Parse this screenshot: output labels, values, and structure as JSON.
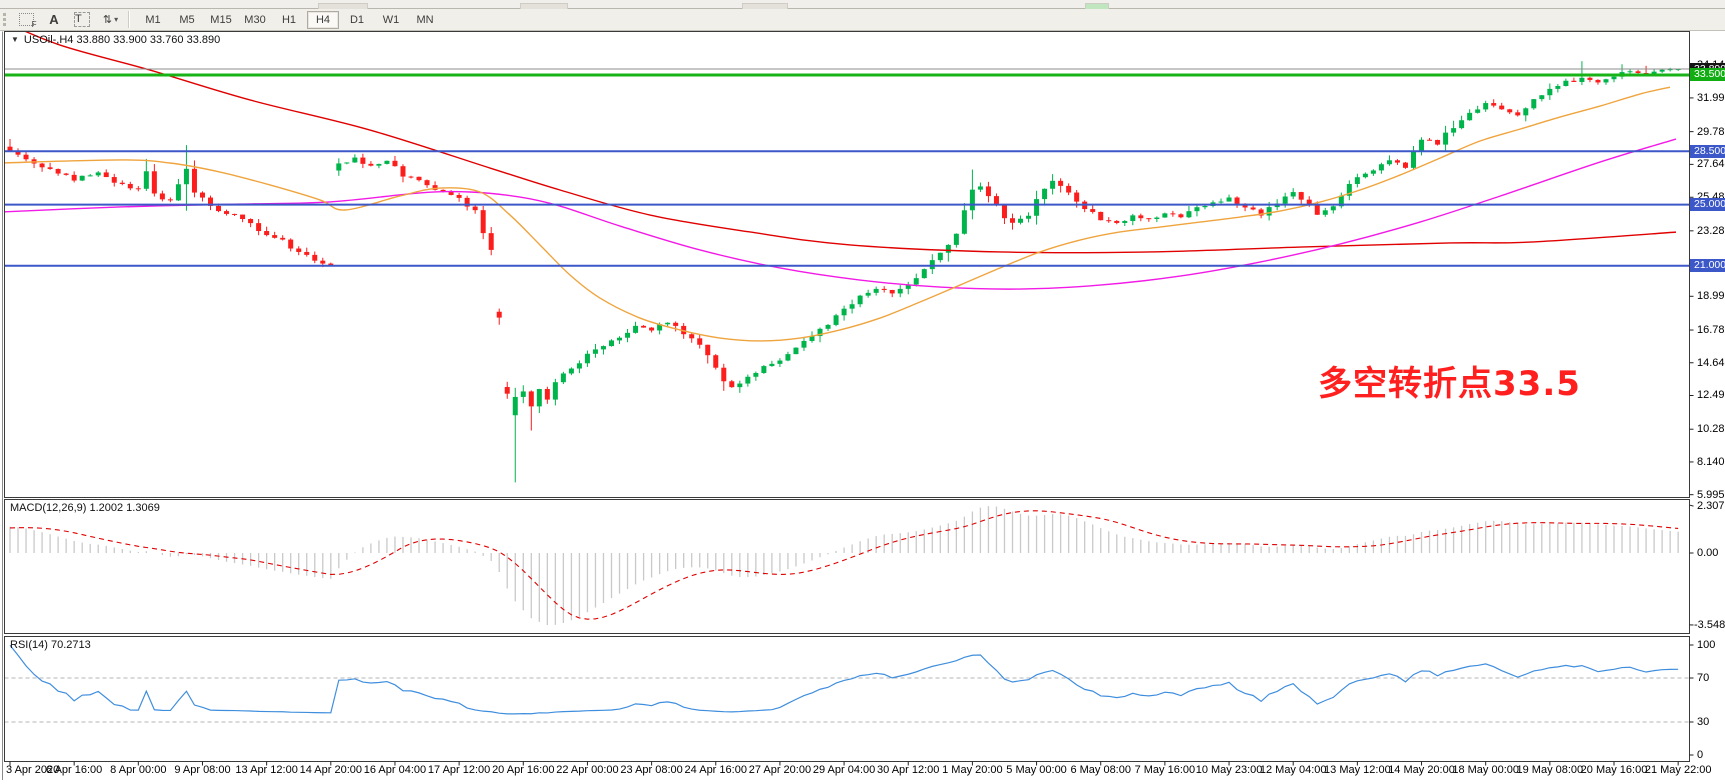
{
  "toolbar": {
    "icons": [
      {
        "name": "template-f-icon",
        "glyph": "F"
      },
      {
        "name": "text-label-icon",
        "glyph": "A"
      },
      {
        "name": "text-box-icon",
        "glyph": "T"
      },
      {
        "name": "arrow-styles-icon",
        "glyph": "⇅",
        "caret": "▾"
      }
    ],
    "timeframes": [
      "M1",
      "M5",
      "M15",
      "M30",
      "H1",
      "H4",
      "D1",
      "W1",
      "MN"
    ],
    "active_timeframe": "H4"
  },
  "main_chart": {
    "title": "USOil-,H4 33.880 33.900 33.760 33.890",
    "collapse_glyph": "▼",
    "annotation": {
      "text": "多空转折点33.5",
      "color": "#ff1f1f"
    }
  },
  "macd_panel": {
    "label": "MACD(12,26,9) 1.2002 1.3069",
    "ticks": [
      2.3072,
      0.0,
      -3.5484
    ]
  },
  "rsi_panel": {
    "label": "RSI(14) 70.2713",
    "ticks": [
      100,
      70,
      30,
      0
    ],
    "levels": [
      70,
      30
    ]
  },
  "chart_data": {
    "type": "candlestick",
    "symbol": "USOil",
    "timeframe": "H4",
    "current_bar_ohlc": {
      "open": 33.88,
      "high": 33.9,
      "low": 33.76,
      "close": 33.89
    },
    "bars": 209,
    "price_axis_ticks": [
      34.14,
      31.995,
      29.785,
      27.64,
      25.485,
      23.285,
      21.14,
      18.995,
      16.785,
      14.64,
      12.495,
      10.285,
      8.14,
      5.995
    ],
    "hlines": [
      {
        "price": 33.89,
        "label": "33.890",
        "line_color": "#8c8c8c",
        "label_bg": "#141414",
        "width": 1,
        "role": "bid-price-line"
      },
      {
        "price": 33.5,
        "label": "33.500",
        "line_color": "#17b317",
        "label_bg": "#12ad12",
        "width": 3,
        "role": "green-level-line"
      },
      {
        "price": 28.5,
        "label": "28.500",
        "line_color": "#3b57c8",
        "label_bg": "#3b57c8",
        "width": 2,
        "role": "blue-level-line"
      },
      {
        "price": 25.0,
        "label": "25.000",
        "line_color": "#3b57c8",
        "label_bg": "#3b57c8",
        "width": 2,
        "role": "blue-level-line"
      },
      {
        "price": 21.0,
        "label": "21.000",
        "line_color": "#3b57c8",
        "label_bg": "#3b57c8",
        "width": 2,
        "role": "blue-level-line"
      }
    ],
    "close_path_anchors": [
      [
        0,
        28.45
      ],
      [
        2,
        28.05
      ],
      [
        5,
        27.25
      ],
      [
        8,
        26.65
      ],
      [
        11,
        27.15
      ],
      [
        14,
        26.25
      ],
      [
        16,
        25.95
      ],
      [
        17,
        27.3
      ],
      [
        18,
        25.6
      ],
      [
        20,
        25.2
      ],
      [
        21,
        26.5
      ],
      [
        22,
        27.4
      ],
      [
        23,
        25.8
      ],
      [
        25,
        24.85
      ],
      [
        28,
        24.3
      ],
      [
        31,
        23.35
      ],
      [
        34,
        22.6
      ],
      [
        37,
        21.6
      ],
      [
        40,
        20.9
      ],
      [
        41,
        27.55
      ],
      [
        43,
        28.0
      ],
      [
        45,
        27.5
      ],
      [
        47,
        27.85
      ],
      [
        49,
        26.85
      ],
      [
        51,
        26.6
      ],
      [
        53,
        26.05
      ],
      [
        55,
        25.7
      ],
      [
        56,
        25.45
      ],
      [
        58,
        24.6
      ],
      [
        60,
        22.0
      ],
      [
        61,
        17.5
      ],
      [
        62,
        12.8
      ],
      [
        63,
        11.3
      ],
      [
        64,
        12.6
      ],
      [
        65,
        11.6
      ],
      [
        66,
        12.8
      ],
      [
        67,
        12.1
      ],
      [
        68,
        13.4
      ],
      [
        70,
        14.2
      ],
      [
        72,
        15.1
      ],
      [
        74,
        15.8
      ],
      [
        76,
        16.4
      ],
      [
        78,
        17.0
      ],
      [
        80,
        16.8
      ],
      [
        82,
        17.3
      ],
      [
        84,
        16.6
      ],
      [
        86,
        15.9
      ],
      [
        88,
        14.2
      ],
      [
        89,
        13.3
      ],
      [
        90,
        13.0
      ],
      [
        92,
        13.8
      ],
      [
        94,
        14.3
      ],
      [
        96,
        14.7
      ],
      [
        98,
        15.6
      ],
      [
        100,
        16.3
      ],
      [
        102,
        17.2
      ],
      [
        104,
        18.2
      ],
      [
        106,
        18.9
      ],
      [
        108,
        19.6
      ],
      [
        110,
        19.1
      ],
      [
        112,
        19.9
      ],
      [
        114,
        20.8
      ],
      [
        116,
        21.7
      ],
      [
        118,
        23.2
      ],
      [
        120,
        25.8
      ],
      [
        121,
        26.3
      ],
      [
        123,
        24.9
      ],
      [
        125,
        23.7
      ],
      [
        127,
        24.2
      ],
      [
        129,
        26.2
      ],
      [
        130,
        26.7
      ],
      [
        132,
        25.8
      ],
      [
        134,
        24.8
      ],
      [
        136,
        24.0
      ],
      [
        138,
        23.7
      ],
      [
        140,
        24.3
      ],
      [
        142,
        24.0
      ],
      [
        144,
        24.5
      ],
      [
        146,
        24.2
      ],
      [
        148,
        24.9
      ],
      [
        150,
        25.1
      ],
      [
        152,
        25.4
      ],
      [
        154,
        24.8
      ],
      [
        156,
        24.4
      ],
      [
        158,
        25.1
      ],
      [
        160,
        25.7
      ],
      [
        162,
        24.9
      ],
      [
        163,
        24.25
      ],
      [
        165,
        24.9
      ],
      [
        166,
        25.6
      ],
      [
        168,
        26.8
      ],
      [
        170,
        27.3
      ],
      [
        172,
        27.9
      ],
      [
        174,
        27.5
      ],
      [
        176,
        29.3
      ],
      [
        178,
        29.0
      ],
      [
        180,
        30.2
      ],
      [
        182,
        31.0
      ],
      [
        184,
        31.6
      ],
      [
        186,
        31.2
      ],
      [
        188,
        30.9
      ],
      [
        190,
        31.9
      ],
      [
        192,
        32.6
      ],
      [
        194,
        33.0
      ],
      [
        196,
        33.3
      ],
      [
        198,
        33.05
      ],
      [
        200,
        33.5
      ],
      [
        202,
        33.7
      ],
      [
        204,
        33.6
      ],
      [
        206,
        33.85
      ],
      [
        208,
        33.89
      ]
    ],
    "bar_overrides": [
      {
        "bar": 0,
        "high": 29.3
      },
      {
        "bar": 17,
        "high": 28.0
      },
      {
        "bar": 22,
        "high": 28.9,
        "low": 24.6
      },
      {
        "bar": 63,
        "open": 11.2,
        "close": 12.4,
        "high": 13.0,
        "low": 6.8
      },
      {
        "bar": 65,
        "low": 10.2
      },
      {
        "bar": 89,
        "low": 12.8
      },
      {
        "bar": 120,
        "high": 27.3
      },
      {
        "bar": 130,
        "high": 27.0
      },
      {
        "bar": 196,
        "high": 34.4
      },
      {
        "bar": 201,
        "high": 34.2
      },
      {
        "bar": 204,
        "high": 34.1
      },
      {
        "bar": 208,
        "open": 33.88,
        "close": 33.89,
        "high": 33.9,
        "low": 33.76
      }
    ],
    "moving_averages": [
      {
        "name": "ma-slow-red",
        "color": "#e00000",
        "points": [
          [
            0,
            37.1
          ],
          [
            60,
            35.46
          ],
          [
            150,
            33.82
          ],
          [
            250,
            31.86
          ],
          [
            370,
            29.89
          ],
          [
            490,
            27.4
          ],
          [
            560,
            25.96
          ],
          [
            650,
            24.32
          ],
          [
            750,
            23.21
          ],
          [
            850,
            22.36
          ],
          [
            1000,
            21.9
          ],
          [
            1150,
            21.9
          ],
          [
            1300,
            22.22
          ],
          [
            1450,
            22.49
          ],
          [
            1530,
            22.55
          ],
          [
            1676,
            23.2
          ]
        ]
      },
      {
        "name": "ma-medium-magenta",
        "color": "#f21ae6",
        "points": [
          [
            0,
            24.52
          ],
          [
            120,
            24.85
          ],
          [
            240,
            25.04
          ],
          [
            330,
            25.18
          ],
          [
            420,
            25.77
          ],
          [
            470,
            25.83
          ],
          [
            520,
            25.5
          ],
          [
            560,
            24.91
          ],
          [
            620,
            23.6
          ],
          [
            700,
            22.03
          ],
          [
            780,
            20.85
          ],
          [
            860,
            20.06
          ],
          [
            940,
            19.6
          ],
          [
            1020,
            19.47
          ],
          [
            1100,
            19.73
          ],
          [
            1180,
            20.32
          ],
          [
            1260,
            21.24
          ],
          [
            1340,
            22.42
          ],
          [
            1420,
            23.86
          ],
          [
            1500,
            25.56
          ],
          [
            1600,
            27.79
          ],
          [
            1676,
            29.3
          ]
        ]
      },
      {
        "name": "ma-fast-orange",
        "color": "#efa43e",
        "points": [
          [
            0,
            27.73
          ],
          [
            120,
            27.93
          ],
          [
            170,
            27.73
          ],
          [
            220,
            27.14
          ],
          [
            270,
            26.29
          ],
          [
            320,
            25.31
          ],
          [
            345,
            24.65
          ],
          [
            400,
            25.57
          ],
          [
            440,
            26.09
          ],
          [
            480,
            25.83
          ],
          [
            510,
            24.32
          ],
          [
            540,
            22.36
          ],
          [
            570,
            20.39
          ],
          [
            600,
            18.88
          ],
          [
            640,
            17.57
          ],
          [
            680,
            16.79
          ],
          [
            720,
            16.26
          ],
          [
            760,
            16.07
          ],
          [
            800,
            16.26
          ],
          [
            840,
            16.79
          ],
          [
            880,
            17.57
          ],
          [
            920,
            18.62
          ],
          [
            960,
            19.73
          ],
          [
            1000,
            20.85
          ],
          [
            1040,
            21.9
          ],
          [
            1080,
            22.68
          ],
          [
            1120,
            23.21
          ],
          [
            1160,
            23.53
          ],
          [
            1200,
            23.86
          ],
          [
            1240,
            24.19
          ],
          [
            1280,
            24.58
          ],
          [
            1320,
            25.17
          ],
          [
            1360,
            25.96
          ],
          [
            1400,
            26.94
          ],
          [
            1440,
            28.05
          ],
          [
            1480,
            29.17
          ],
          [
            1520,
            29.95
          ],
          [
            1560,
            30.74
          ],
          [
            1600,
            31.46
          ],
          [
            1640,
            32.25
          ],
          [
            1670,
            32.7
          ]
        ]
      }
    ],
    "macd": {
      "fast": 12,
      "slow": 26,
      "signal": 9,
      "value": 1.2002,
      "signal_value": 1.3069,
      "scale_max": 2.3072,
      "scale_min": -3.5484,
      "hist_color": "#c9c9c9",
      "signal_color": "#e00000"
    },
    "rsi": {
      "period": 14,
      "value": 70.2713,
      "color": "#3f8ede",
      "levels": [
        70,
        30
      ]
    },
    "candle_up_color": "#00b44c",
    "candle_down_color": "#fc1d1d",
    "time_axis": [
      [
        "3 Apr 2020",
        0
      ],
      [
        "6 Apr 16:00",
        8
      ],
      [
        "8 Apr 00:00",
        16
      ],
      [
        "9 Apr 08:00",
        24
      ],
      [
        "13 Apr 12:00",
        32
      ],
      [
        "14 Apr 20:00",
        40
      ],
      [
        "16 Apr 04:00",
        48
      ],
      [
        "17 Apr 12:00",
        56
      ],
      [
        "20 Apr 16:00",
        64
      ],
      [
        "22 Apr 00:00",
        72
      ],
      [
        "23 Apr 08:00",
        80
      ],
      [
        "24 Apr 16:00",
        88
      ],
      [
        "27 Apr 20:00",
        96
      ],
      [
        "29 Apr 04:00",
        104
      ],
      [
        "30 Apr 12:00",
        112
      ],
      [
        "1 May 20:00",
        120
      ],
      [
        "5 May 00:00",
        128
      ],
      [
        "6 May 08:00",
        136
      ],
      [
        "7 May 16:00",
        144
      ],
      [
        "10 May 23:00",
        152
      ],
      [
        "12 May 04:00",
        160
      ],
      [
        "13 May 12:00",
        168
      ],
      [
        "14 May 20:00",
        176
      ],
      [
        "18 May 00:00",
        184
      ],
      [
        "19 May 08:00",
        192
      ],
      [
        "20 May 16:00",
        200
      ],
      [
        "21 May 22:00",
        208
      ]
    ]
  }
}
